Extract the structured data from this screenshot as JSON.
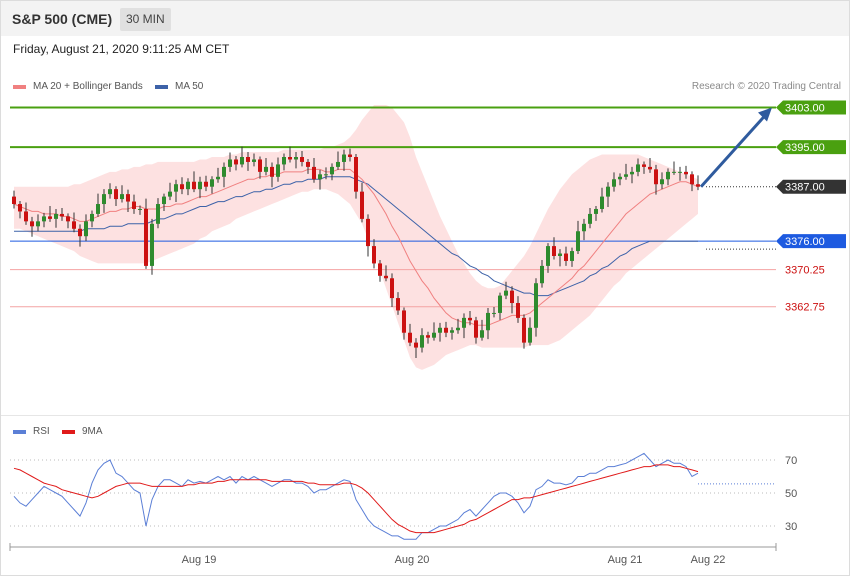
{
  "header": {
    "symbol": "S&P 500 (CME)",
    "timeframe": "30 MIN",
    "datetime": "Friday, August 21, 2020 9:11:25 AM CET"
  },
  "legend": {
    "ma20_label": "MA 20 + Bollinger Bands",
    "ma50_label": "MA 50",
    "credit": "Research © 2020 Trading Central",
    "rsi_label": "RSI",
    "rsi_ma_label": "9MA"
  },
  "colors": {
    "up": "#2e8b2e",
    "down": "#cc1111",
    "ma20": "#f08080",
    "ma50": "#3d62a8",
    "band": "#fde1e1",
    "resistance": "#4aa010",
    "pivot": "#1d5ae0",
    "support": "#f4a3a3",
    "arrow": "#2f5b9e",
    "rsi": "#5b7fd6",
    "rsi_ma": "#e01a1a",
    "current_price_bg": "#333333"
  },
  "chart_data": {
    "type": "candlestick",
    "y_range": [
      3350.5,
      3413.5
    ],
    "x_axis_labels": [
      "Aug 19",
      "Aug 20",
      "Aug 21",
      "Aug 22"
    ],
    "levels": [
      {
        "value": 3403.0,
        "label": "3403.00",
        "kind": "resistance"
      },
      {
        "value": 3395.0,
        "label": "3395.00",
        "kind": "resistance"
      },
      {
        "value": 3387.0,
        "label": "3387.00",
        "kind": "current"
      },
      {
        "value": 3376.0,
        "label": "3376.00",
        "kind": "pivot"
      },
      {
        "value": 3370.25,
        "label": "3370.25",
        "kind": "support"
      },
      {
        "value": 3362.75,
        "label": "3362.75",
        "kind": "support"
      }
    ],
    "projection": {
      "from": 3387.0,
      "to": 3403.0
    },
    "closes": [
      3383.5,
      3382.0,
      3380.0,
      3379.0,
      3380.0,
      3381.0,
      3380.5,
      3381.5,
      3381.0,
      3380.0,
      3378.5,
      3377.0,
      3380.0,
      3381.5,
      3383.5,
      3385.5,
      3386.5,
      3384.5,
      3385.5,
      3384.0,
      3382.5,
      3382.5,
      3371.0,
      3379.5,
      3383.5,
      3385.0,
      3386.0,
      3387.5,
      3386.5,
      3388.0,
      3386.5,
      3388.0,
      3387.0,
      3388.5,
      3389.0,
      3391.0,
      3392.5,
      3391.5,
      3393.0,
      3392.0,
      3392.5,
      3390.0,
      3391.0,
      3389.0,
      3391.5,
      3393.0,
      3392.5,
      3393.0,
      3392.0,
      3391.0,
      3388.5,
      3389.5,
      3389.5,
      3391.0,
      3392.0,
      3393.5,
      3393.0,
      3386.0,
      3380.5,
      3375.0,
      3371.5,
      3369.0,
      3368.5,
      3364.5,
      3362.0,
      3357.5,
      3355.5,
      3354.5,
      3357.0,
      3356.5,
      3357.5,
      3358.5,
      3357.5,
      3358.0,
      3358.5,
      3360.5,
      3360.0,
      3356.5,
      3358.0,
      3361.5,
      3361.5,
      3365.0,
      3366.0,
      3363.5,
      3360.5,
      3355.5,
      3358.5,
      3367.5,
      3371.0,
      3375.0,
      3373.0,
      3373.5,
      3372.0,
      3374.0,
      3378.0,
      3379.5,
      3381.5,
      3382.5,
      3385.0,
      3387.0,
      3388.5,
      3389.0,
      3389.5,
      3390.0,
      3391.5,
      3391.0,
      3390.5,
      3387.5,
      3388.5,
      3390.0,
      3390.0,
      3390.0,
      3389.5,
      3387.5,
      3387.0
    ],
    "ma20": [
      3383.5,
      3383.0,
      3382.5,
      3382.0,
      3382.0,
      3381.5,
      3381.5,
      3381.5,
      3381.0,
      3381.0,
      3380.5,
      3380.0,
      3380.0,
      3380.5,
      3381.0,
      3381.5,
      3382.0,
      3382.0,
      3382.5,
      3382.5,
      3383.0,
      3383.0,
      3382.5,
      3382.5,
      3382.5,
      3383.0,
      3383.0,
      3383.5,
      3383.5,
      3384.0,
      3384.5,
      3385.0,
      3385.0,
      3385.5,
      3386.0,
      3386.5,
      3387.0,
      3387.5,
      3388.0,
      3388.5,
      3388.5,
      3389.0,
      3389.0,
      3389.5,
      3389.5,
      3390.0,
      3390.0,
      3390.0,
      3390.0,
      3390.5,
      3390.5,
      3390.5,
      3390.0,
      3390.0,
      3390.5,
      3390.5,
      3390.5,
      3389.5,
      3388.5,
      3387.0,
      3385.5,
      3383.5,
      3381.5,
      3379.0,
      3377.0,
      3374.5,
      3372.0,
      3370.0,
      3368.0,
      3366.5,
      3364.5,
      3363.0,
      3361.5,
      3360.5,
      3360.0,
      3359.5,
      3359.5,
      3359.0,
      3359.0,
      3359.0,
      3359.5,
      3360.0,
      3360.5,
      3361.0,
      3361.0,
      3361.0,
      3361.5,
      3362.5,
      3363.5,
      3364.5,
      3365.5,
      3366.5,
      3367.5,
      3368.5,
      3370.0,
      3371.0,
      3372.5,
      3374.0,
      3375.5,
      3377.0,
      3378.5,
      3380.0,
      3381.5,
      3382.5,
      3383.5,
      3384.5,
      3385.5,
      3386.0,
      3386.5,
      3387.0,
      3387.5,
      3388.0,
      3388.0,
      3387.5,
      3387.0
    ],
    "ma50": [
      3378.0,
      3378.0,
      3378.0,
      3378.0,
      3378.0,
      3378.0,
      3378.0,
      3378.0,
      3378.0,
      3378.0,
      3378.0,
      3378.0,
      3378.5,
      3378.5,
      3378.5,
      3378.5,
      3379.0,
      3379.0,
      3379.0,
      3379.5,
      3379.5,
      3379.5,
      3379.5,
      3380.0,
      3380.5,
      3380.5,
      3381.0,
      3381.5,
      3381.5,
      3382.0,
      3382.5,
      3383.0,
      3383.0,
      3383.5,
      3384.0,
      3384.0,
      3384.5,
      3385.0,
      3385.0,
      3385.5,
      3386.0,
      3386.0,
      3386.5,
      3386.5,
      3387.0,
      3387.5,
      3387.5,
      3388.0,
      3388.0,
      3388.5,
      3388.5,
      3388.5,
      3389.0,
      3389.0,
      3389.0,
      3389.0,
      3389.0,
      3388.5,
      3388.0,
      3387.5,
      3386.5,
      3385.5,
      3384.5,
      3383.5,
      3382.5,
      3381.5,
      3380.5,
      3379.5,
      3378.5,
      3377.5,
      3376.5,
      3375.5,
      3374.5,
      3373.5,
      3373.0,
      3372.0,
      3371.0,
      3370.5,
      3369.5,
      3369.0,
      3368.0,
      3367.5,
      3367.0,
      3366.5,
      3366.0,
      3365.5,
      3365.5,
      3365.0,
      3365.0,
      3365.0,
      3365.5,
      3366.0,
      3366.5,
      3367.0,
      3367.5,
      3368.0,
      3369.0,
      3369.5,
      3370.5,
      3371.0,
      3372.0,
      3373.0,
      3373.5,
      3374.5,
      3375.0,
      3375.5,
      3376.0,
      3376.0,
      3376.0,
      3376.0,
      3376.0,
      3376.0,
      3376.0,
      3376.0,
      3376.0
    ],
    "band_upper": [
      3387.0,
      3387.0,
      3387.0,
      3387.0,
      3387.0,
      3387.0,
      3387.0,
      3387.0,
      3387.0,
      3387.0,
      3387.5,
      3387.5,
      3388.0,
      3388.5,
      3389.0,
      3389.5,
      3390.0,
      3390.0,
      3390.5,
      3390.5,
      3391.0,
      3391.0,
      3391.5,
      3391.5,
      3392.0,
      3392.0,
      3392.0,
      3392.0,
      3392.0,
      3392.0,
      3392.0,
      3392.5,
      3392.5,
      3393.0,
      3393.0,
      3393.0,
      3393.5,
      3393.5,
      3394.0,
      3394.0,
      3394.0,
      3394.0,
      3394.0,
      3394.0,
      3394.0,
      3394.5,
      3394.5,
      3394.5,
      3394.5,
      3394.5,
      3394.5,
      3394.5,
      3395.0,
      3395.0,
      3395.5,
      3396.0,
      3397.0,
      3398.5,
      3400.5,
      3402.0,
      3403.5,
      3403.5,
      3403.5,
      3403.0,
      3401.5,
      3400.0,
      3397.0,
      3393.0,
      3390.0,
      3387.0,
      3384.0,
      3381.0,
      3378.5,
      3376.0,
      3373.5,
      3371.5,
      3369.5,
      3368.0,
      3367.0,
      3366.5,
      3366.5,
      3367.0,
      3368.5,
      3370.0,
      3371.5,
      3373.0,
      3375.0,
      3377.5,
      3380.0,
      3382.5,
      3384.5,
      3386.5,
      3388.0,
      3389.5,
      3390.5,
      3391.5,
      3392.5,
      3393.0,
      3393.5,
      3393.5,
      3393.5,
      3393.5,
      3393.5,
      3393.5,
      3393.5,
      3393.0,
      3392.5,
      3392.0,
      3391.5,
      3391.0,
      3390.5,
      3390.0,
      3389.5,
      3389.0,
      3388.5
    ],
    "band_lower": [
      3378.5,
      3378.5,
      3378.0,
      3377.5,
      3377.0,
      3376.5,
      3376.0,
      3375.5,
      3375.0,
      3374.5,
      3374.0,
      3373.0,
      3372.5,
      3372.0,
      3371.5,
      3371.5,
      3371.5,
      3371.5,
      3371.5,
      3371.5,
      3371.5,
      3371.5,
      3371.5,
      3372.0,
      3372.5,
      3373.0,
      3373.5,
      3374.0,
      3374.5,
      3375.0,
      3375.5,
      3376.5,
      3377.0,
      3378.0,
      3378.5,
      3379.0,
      3379.5,
      3380.5,
      3381.0,
      3381.5,
      3382.0,
      3382.5,
      3383.0,
      3383.5,
      3384.0,
      3384.5,
      3385.0,
      3385.5,
      3386.0,
      3386.0,
      3386.5,
      3386.5,
      3386.5,
      3386.0,
      3385.5,
      3384.5,
      3383.5,
      3381.5,
      3379.5,
      3376.5,
      3373.5,
      3370.0,
      3366.5,
      3363.0,
      3359.5,
      3356.0,
      3352.5,
      3350.5,
      3350.0,
      3350.5,
      3351.0,
      3352.0,
      3353.0,
      3353.5,
      3354.0,
      3354.5,
      3355.0,
      3355.0,
      3354.5,
      3354.5,
      3354.5,
      3354.5,
      3354.5,
      3354.5,
      3354.5,
      3354.5,
      3355.0,
      3355.0,
      3355.0,
      3355.0,
      3355.5,
      3356.0,
      3357.0,
      3358.0,
      3359.0,
      3360.0,
      3361.0,
      3362.5,
      3364.0,
      3365.5,
      3367.0,
      3368.0,
      3369.5,
      3370.5,
      3371.5,
      3372.5,
      3373.5,
      3374.5,
      3375.5,
      3376.5,
      3377.5,
      3378.5,
      3379.5,
      3380.5,
      3381.5
    ],
    "rsi_panel": {
      "y_range": [
        20,
        80
      ],
      "gridlines": [
        70,
        50,
        30
      ],
      "rsi": [
        48,
        44,
        42,
        46,
        50,
        54,
        52,
        50,
        48,
        44,
        40,
        36,
        44,
        56,
        64,
        68,
        70,
        62,
        60,
        56,
        52,
        50,
        30,
        46,
        54,
        58,
        58,
        56,
        54,
        58,
        56,
        57,
        56,
        58,
        60,
        58,
        60,
        56,
        60,
        58,
        60,
        58,
        56,
        54,
        56,
        58,
        58,
        56,
        56,
        54,
        50,
        52,
        52,
        54,
        56,
        58,
        57,
        46,
        40,
        34,
        30,
        28,
        26,
        24,
        24,
        22,
        22,
        22,
        26,
        26,
        28,
        30,
        30,
        32,
        34,
        38,
        40,
        36,
        40,
        44,
        48,
        50,
        50,
        48,
        44,
        38,
        42,
        52,
        54,
        58,
        56,
        56,
        55,
        56,
        60,
        60,
        62,
        62,
        64,
        66,
        66,
        67,
        68,
        70,
        72,
        74,
        70,
        66,
        68,
        70,
        68,
        68,
        66,
        60,
        62
      ],
      "rsi_ma": [
        65,
        64,
        62,
        60,
        58,
        56,
        55,
        54,
        52,
        51,
        50,
        49,
        48,
        47,
        48,
        50,
        52,
        54,
        55,
        56,
        56,
        56,
        55,
        54,
        54,
        54,
        54,
        54,
        54,
        55,
        55,
        56,
        56,
        56,
        57,
        57,
        58,
        58,
        58,
        58,
        58,
        58,
        58,
        57,
        57,
        57,
        57,
        57,
        57,
        56,
        56,
        55,
        55,
        55,
        55,
        56,
        56,
        55,
        53,
        50,
        46,
        42,
        38,
        34,
        31,
        29,
        27,
        26,
        26,
        26,
        26,
        27,
        28,
        29,
        30,
        31,
        33,
        34,
        36,
        38,
        40,
        42,
        44,
        46,
        46,
        47,
        47,
        48,
        49,
        50,
        51,
        52,
        53,
        54,
        55,
        56,
        57,
        58,
        59,
        60,
        61,
        62,
        63,
        64,
        65,
        66,
        66,
        67,
        67,
        67,
        66,
        66,
        65,
        64,
        63
      ]
    }
  }
}
